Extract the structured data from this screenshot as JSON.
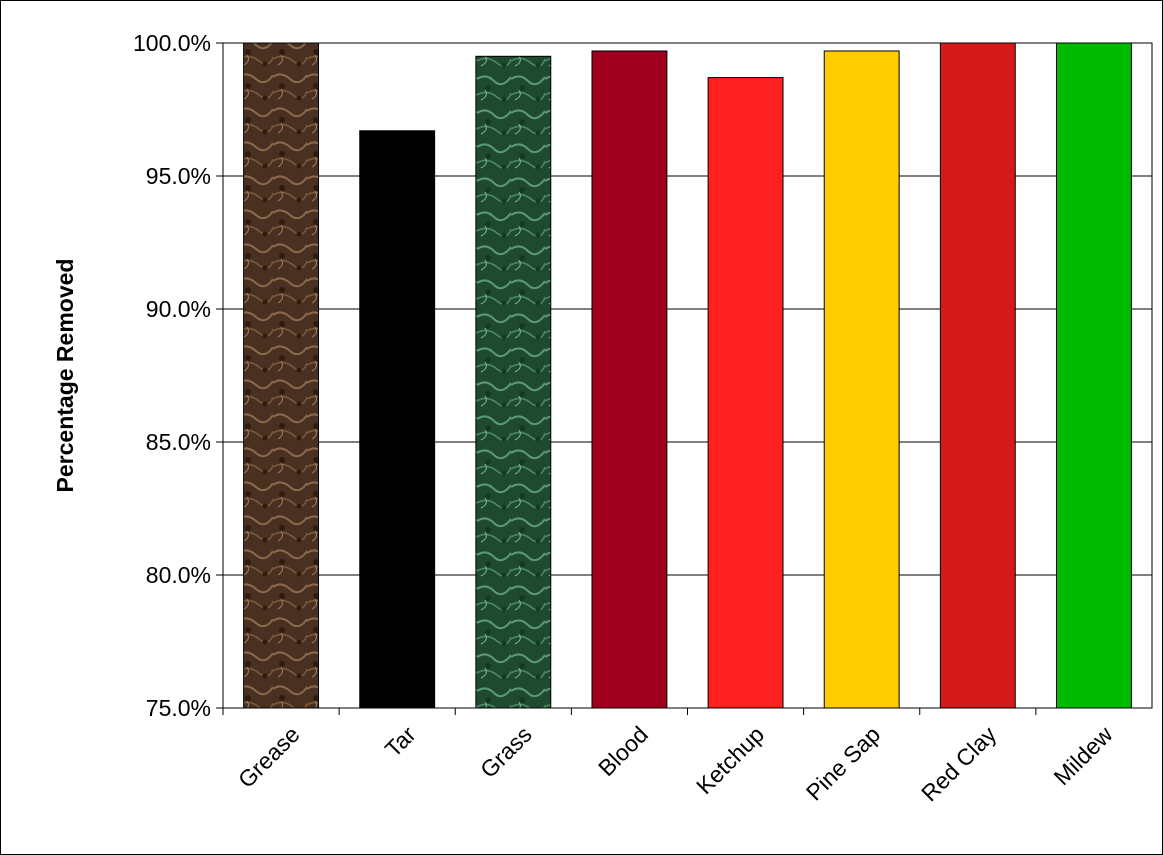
{
  "chart_data": {
    "type": "bar",
    "title": "",
    "xlabel": "",
    "ylabel": "Percentage Removed",
    "ylim": [
      75,
      100
    ],
    "yticks": [
      75,
      80,
      85,
      90,
      95,
      100
    ],
    "ytick_labels": [
      "75.0%",
      "80.0%",
      "85.0%",
      "90.0%",
      "95.0%",
      "100.0%"
    ],
    "grid": true,
    "legend": "none",
    "categories": [
      "Grease",
      "Tar",
      "Grass",
      "Blood",
      "Ketchup",
      "Pine Sap",
      "Red Clay",
      "Mildew"
    ],
    "values": [
      100.0,
      96.7,
      99.5,
      99.7,
      98.7,
      99.7,
      100.0,
      100.0
    ],
    "colors": [
      "#5a3a22",
      "#000000",
      "#2a5a3c",
      "#a0001e",
      "#ff2020",
      "#ffcc00",
      "#d41a1a",
      "#00bb00"
    ],
    "fills": [
      "texture-brown",
      "solid",
      "texture-green",
      "solid",
      "solid",
      "solid",
      "solid",
      "solid"
    ]
  }
}
